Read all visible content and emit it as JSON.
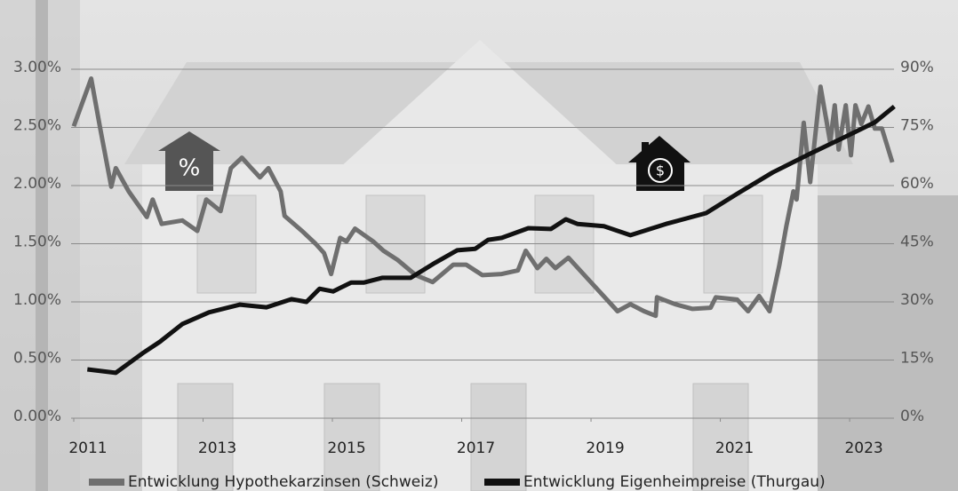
{
  "chart_data": {
    "type": "line",
    "annotations": [
      "%",
      "$"
    ],
    "xlim": [
      2011,
      2023.7
    ],
    "xticks": [
      2011,
      2013,
      2015,
      2017,
      2019,
      2021,
      2023
    ],
    "ylim": [
      0,
      3
    ],
    "yticks": [
      {
        "value": 0,
        "label": "0.00%"
      },
      {
        "value": 0.5,
        "label": "0.50%"
      },
      {
        "value": 1,
        "label": "1.00%"
      },
      {
        "value": 1.5,
        "label": "1.50%"
      },
      {
        "value": 2,
        "label": "2.00%"
      },
      {
        "value": 2.5,
        "label": "2.50%"
      },
      {
        "value": 3,
        "label": "3.00%"
      }
    ],
    "y2lim": [
      0,
      90
    ],
    "y2ticks": [
      {
        "value": 0,
        "label": "0%"
      },
      {
        "value": 15,
        "label": "15%"
      },
      {
        "value": 30,
        "label": "30%"
      },
      {
        "value": 45,
        "label": "45%"
      },
      {
        "value": 60,
        "label": "60%"
      },
      {
        "value": 75,
        "label": "75%"
      },
      {
        "value": 90,
        "label": "90%"
      }
    ],
    "grid": true,
    "legend": "bottom",
    "series": [
      {
        "name": "Entwicklung Hypothekarzinsen (Schweiz)",
        "color": "#6f6f6f",
        "axis": "y",
        "x": [
          2011.0,
          2011.27,
          2011.41,
          2011.58,
          2011.65,
          2011.85,
          2012.13,
          2012.22,
          2012.36,
          2012.68,
          2012.91,
          2013.05,
          2013.27,
          2013.43,
          2013.6,
          2013.73,
          2013.88,
          2014.01,
          2014.2,
          2014.26,
          2014.53,
          2014.74,
          2014.87,
          2014.98,
          2015.12,
          2015.22,
          2015.35,
          2015.63,
          2015.79,
          2016.01,
          2016.29,
          2016.55,
          2016.87,
          2017.07,
          2017.32,
          2017.62,
          2017.87,
          2017.99,
          2018.17,
          2018.31,
          2018.45,
          2018.65,
          2018.93,
          2019.41,
          2019.61,
          2019.82,
          2020.0,
          2020.02,
          2020.3,
          2020.57,
          2020.85,
          2020.93,
          2021.26,
          2021.43,
          2021.6,
          2021.76,
          2021.91,
          2022.02,
          2022.13,
          2022.18,
          2022.29,
          2022.39,
          2022.55,
          2022.7,
          2022.77,
          2022.83,
          2022.94,
          2023.02,
          2023.09,
          2023.18,
          2023.29,
          2023.39,
          2023.5,
          2023.66
        ],
        "values": [
          2.51,
          2.92,
          2.49,
          1.99,
          2.15,
          1.95,
          1.73,
          1.88,
          1.67,
          1.7,
          1.61,
          1.88,
          1.78,
          2.15,
          2.24,
          2.16,
          2.07,
          2.15,
          1.95,
          1.74,
          1.61,
          1.5,
          1.42,
          1.24,
          1.55,
          1.52,
          1.63,
          1.52,
          1.44,
          1.36,
          1.23,
          1.17,
          1.32,
          1.32,
          1.23,
          1.24,
          1.27,
          1.44,
          1.29,
          1.37,
          1.29,
          1.38,
          1.21,
          0.92,
          0.98,
          0.92,
          0.88,
          1.04,
          0.98,
          0.94,
          0.95,
          1.04,
          1.02,
          0.92,
          1.05,
          0.92,
          1.31,
          1.65,
          1.95,
          1.88,
          2.54,
          2.03,
          2.85,
          2.37,
          2.69,
          2.31,
          2.69,
          2.26,
          2.69,
          2.53,
          2.68,
          2.49,
          2.49,
          2.2
        ]
      },
      {
        "name": "Entwicklung Eigenheimpreise (Thurgau)",
        "color": "#111111",
        "axis": "y2",
        "x": [
          2011.21,
          2011.65,
          2012.06,
          2012.33,
          2012.68,
          2013.09,
          2013.57,
          2013.98,
          2014.37,
          2014.6,
          2014.8,
          2015.01,
          2015.29,
          2015.49,
          2015.77,
          2016.21,
          2016.59,
          2016.93,
          2017.21,
          2017.41,
          2017.62,
          2018.03,
          2018.38,
          2018.61,
          2018.79,
          2019.2,
          2019.61,
          2020.16,
          2020.78,
          2021.26,
          2021.81,
          2022.36,
          2022.91,
          2023.39,
          2023.69
        ],
        "values": [
          12.6,
          11.7,
          16.7,
          19.7,
          24.3,
          27.3,
          29.3,
          28.6,
          30.7,
          30.0,
          33.4,
          32.7,
          35.0,
          35.0,
          36.2,
          36.2,
          40.1,
          43.3,
          43.7,
          46.0,
          46.5,
          49.0,
          48.8,
          51.3,
          50.1,
          49.5,
          47.2,
          50.1,
          52.9,
          57.9,
          63.4,
          68.0,
          72.4,
          76.3,
          80.4
        ]
      }
    ]
  }
}
